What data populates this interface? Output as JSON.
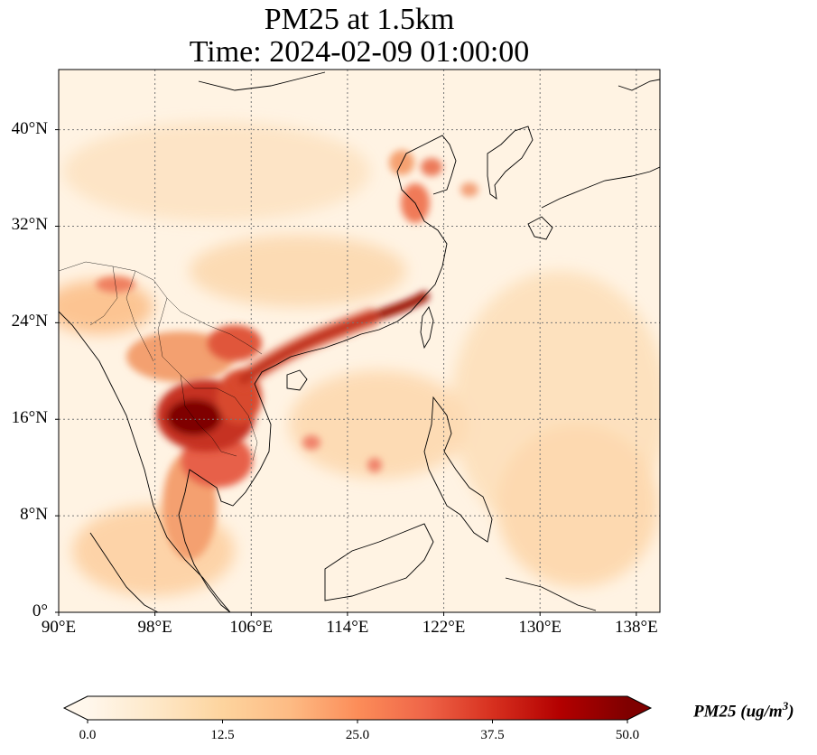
{
  "title_line1": "PM25 at 1.5km",
  "title_line2": "Time: 2024-02-09 01:00:00",
  "map": {
    "lon_range": [
      90,
      140
    ],
    "lat_range": [
      0,
      40
    ],
    "lat_ticks": [
      {
        "value": 0,
        "label": "0°"
      },
      {
        "value": 8,
        "label": "8°N"
      },
      {
        "value": 16,
        "label": "16°N"
      },
      {
        "value": 24,
        "label": "24°N"
      },
      {
        "value": 32,
        "label": "32°N"
      },
      {
        "value": 40,
        "label": "40°N"
      }
    ],
    "lon_ticks": [
      {
        "value": 90,
        "label": "90°E"
      },
      {
        "value": 98,
        "label": "98°E"
      },
      {
        "value": 106,
        "label": "106°E"
      },
      {
        "value": 114,
        "label": "114°E"
      },
      {
        "value": 122,
        "label": "122°E"
      },
      {
        "value": 130,
        "label": "130°E"
      },
      {
        "value": 138,
        "label": "138°E"
      }
    ],
    "gridlines": true,
    "coastlines": true
  },
  "colorbar": {
    "label": "PM25 (ug/m",
    "label_sup": "3",
    "label_close": ")",
    "min": 0.0,
    "max": 50.0,
    "extend": "both",
    "colormap": "OrRd",
    "colors": [
      "#fff7ec",
      "#fee8c8",
      "#fdd49e",
      "#fdbb84",
      "#fc8d59",
      "#ef6548",
      "#d7301f",
      "#b30000",
      "#7f0000"
    ],
    "ticks": [
      "0.0",
      "12.5",
      "25.0",
      "37.5",
      "50.0"
    ]
  }
}
